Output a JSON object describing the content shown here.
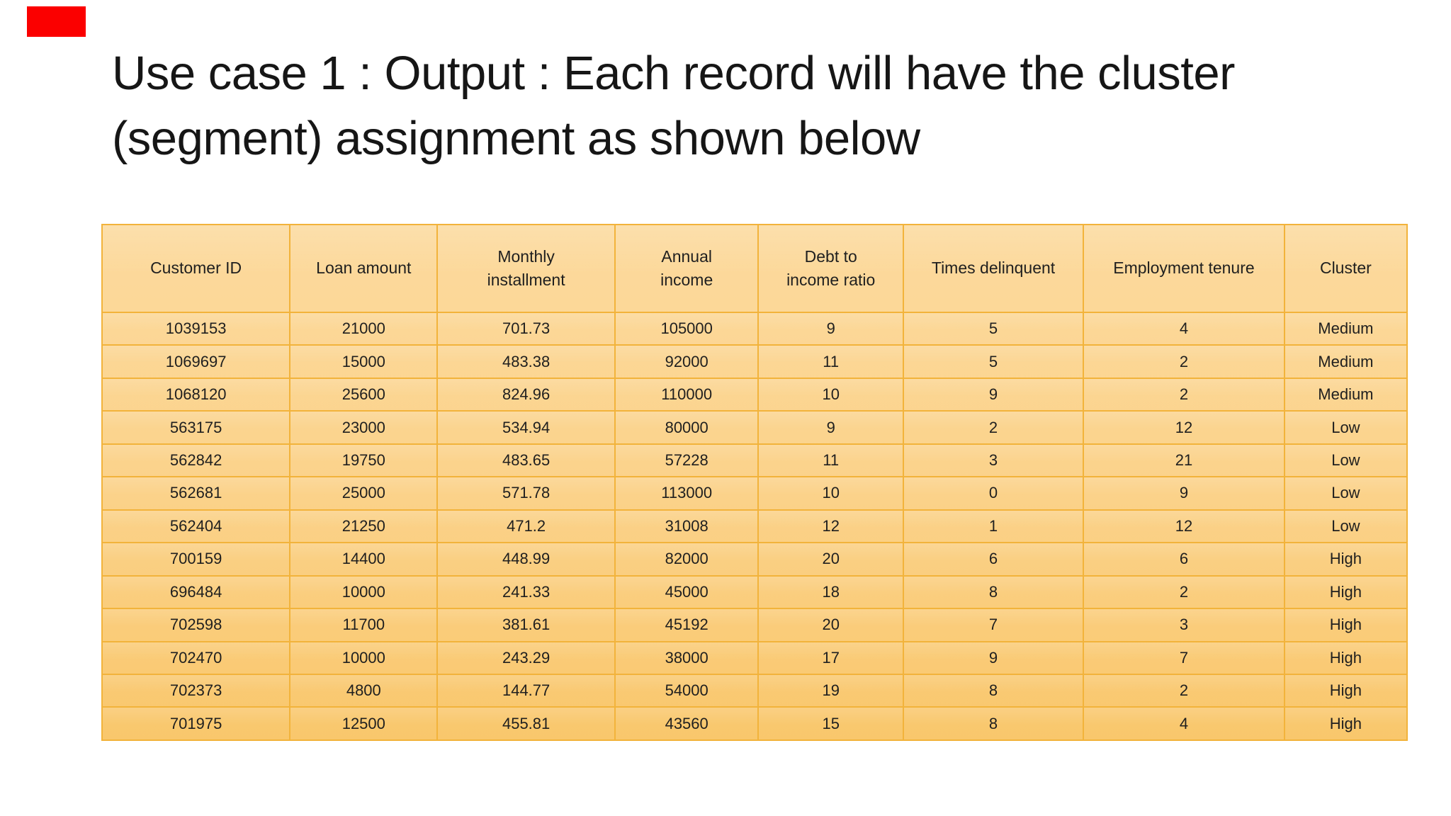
{
  "slide": {
    "title": "Use case 1 : Output : Each record will have the cluster (segment) assignment as shown below"
  },
  "colors": {
    "table_fill_top": "#FCDA9E",
    "table_fill_mid": "#FBD28A",
    "table_fill_bottom": "#F9C76C",
    "table_border": "#F2B33B",
    "red_marker": "#FB0000",
    "text": "#1F1F1F"
  },
  "table": {
    "columns": [
      "Customer ID",
      "Loan amount",
      "Monthly\ninstallment",
      "Annual\nincome",
      "Debt to\nincome ratio",
      "Times delinquent",
      "Employment tenure",
      "Cluster"
    ],
    "rows": [
      [
        "1039153",
        "21000",
        "701.73",
        "105000",
        "9",
        "5",
        "4",
        "Medium"
      ],
      [
        "1069697",
        "15000",
        "483.38",
        "92000",
        "11",
        "5",
        "2",
        "Medium"
      ],
      [
        "1068120",
        "25600",
        "824.96",
        "110000",
        "10",
        "9",
        "2",
        "Medium"
      ],
      [
        "563175",
        "23000",
        "534.94",
        "80000",
        "9",
        "2",
        "12",
        "Low"
      ],
      [
        "562842",
        "19750",
        "483.65",
        "57228",
        "11",
        "3",
        "21",
        "Low"
      ],
      [
        "562681",
        "25000",
        "571.78",
        "113000",
        "10",
        "0",
        "9",
        "Low"
      ],
      [
        "562404",
        "21250",
        "471.2",
        "31008",
        "12",
        "1",
        "12",
        "Low"
      ],
      [
        "700159",
        "14400",
        "448.99",
        "82000",
        "20",
        "6",
        "6",
        "High"
      ],
      [
        "696484",
        "10000",
        "241.33",
        "45000",
        "18",
        "8",
        "2",
        "High"
      ],
      [
        "702598",
        "11700",
        "381.61",
        "45192",
        "20",
        "7",
        "3",
        "High"
      ],
      [
        "702470",
        "10000",
        "243.29",
        "38000",
        "17",
        "9",
        "7",
        "High"
      ],
      [
        "702373",
        "4800",
        "144.77",
        "54000",
        "19",
        "8",
        "2",
        "High"
      ],
      [
        "701975",
        "12500",
        "455.81",
        "43560",
        "15",
        "8",
        "4",
        "High"
      ]
    ]
  }
}
